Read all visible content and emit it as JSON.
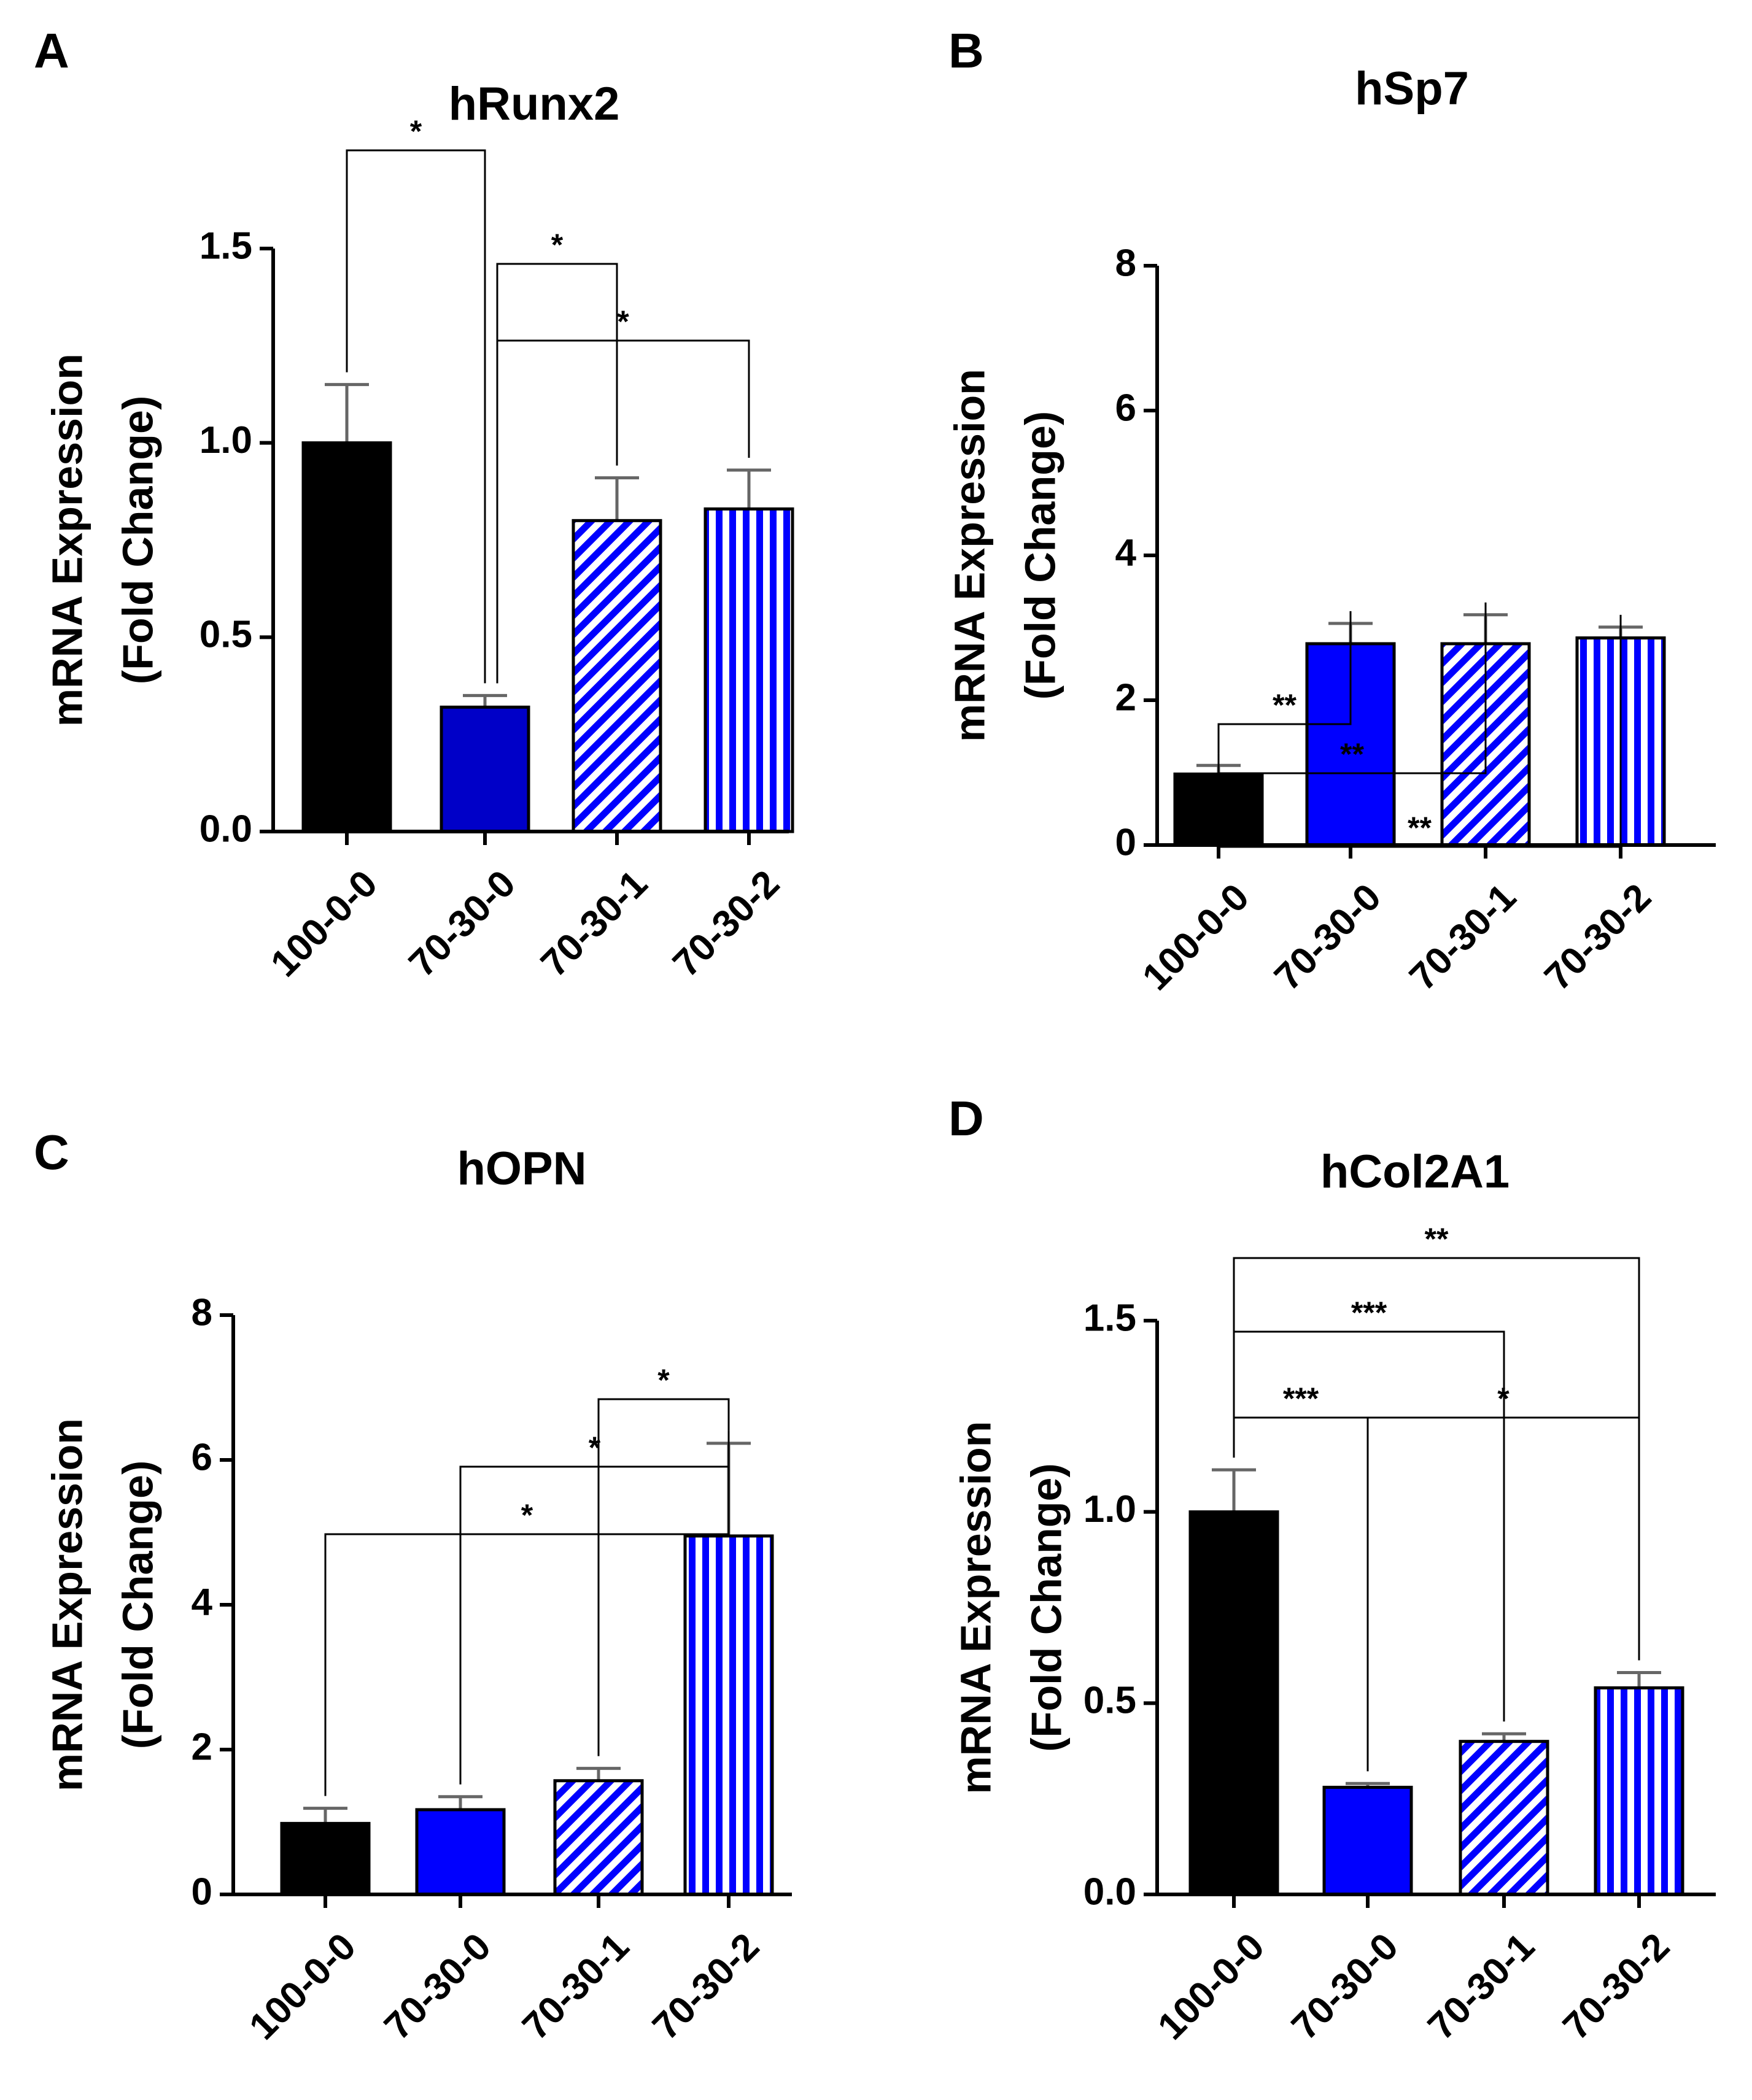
{
  "colors": {
    "black": "#000000",
    "blue": "#0000ff",
    "navy": "#0000c8",
    "errorbar": "#666666"
  },
  "chart_data": [
    {
      "panel": "A",
      "type": "bar",
      "title": "hRunx2",
      "ylabel": [
        "mRNA Expression",
        "(Fold Change)"
      ],
      "xlabel": "",
      "categories": [
        "100-0-0",
        "70-30-0",
        "70-30-1",
        "70-30-2"
      ],
      "values": [
        1.0,
        0.32,
        0.8,
        0.83
      ],
      "errors": [
        0.15,
        0.03,
        0.11,
        0.1
      ],
      "ylim": [
        0,
        1.5
      ],
      "yticks": [
        0.0,
        0.5,
        1.0,
        1.5
      ],
      "ytick_labels": [
        "0.0",
        "0.5",
        "1.0",
        "1.5"
      ],
      "bar_fill": [
        "black",
        "navy",
        "hatch-diagonal",
        "hatch-vertical"
      ],
      "significance": [
        {
          "from": 0,
          "to": 1,
          "label": "*"
        },
        {
          "from": 1,
          "to": 2,
          "label": "*"
        },
        {
          "from": 1,
          "to": 3,
          "label": "*"
        }
      ]
    },
    {
      "panel": "B",
      "type": "bar",
      "title": "hSp7",
      "ylabel": [
        "mRNA Expression",
        "(Fold Change)"
      ],
      "xlabel": "",
      "categories": [
        "100-0-0",
        "70-30-0",
        "70-30-1",
        "70-30-2"
      ],
      "values": [
        0.98,
        2.78,
        2.78,
        2.86
      ],
      "errors": [
        0.12,
        0.28,
        0.4,
        0.15
      ],
      "ylim": [
        0,
        8
      ],
      "yticks": [
        0,
        2,
        4,
        6,
        8
      ],
      "ytick_labels": [
        "0",
        "2",
        "4",
        "6",
        "8"
      ],
      "bar_fill": [
        "black",
        "blue",
        "hatch-diagonal",
        "hatch-vertical"
      ],
      "significance": [
        {
          "from": 0,
          "to": 1,
          "label": "**"
        },
        {
          "from": 0,
          "to": 2,
          "label": "**"
        },
        {
          "from": 0,
          "to": 3,
          "label": "**"
        }
      ]
    },
    {
      "panel": "C",
      "type": "bar",
      "title": "hOPN",
      "ylabel": [
        "mRNA Expression",
        "(Fold Change)"
      ],
      "xlabel": "",
      "categories": [
        "100-0-0",
        "70-30-0",
        "70-30-1",
        "70-30-2"
      ],
      "values": [
        0.98,
        1.17,
        1.57,
        4.95
      ],
      "errors": [
        0.21,
        0.18,
        0.17,
        1.28
      ],
      "ylim": [
        0,
        8
      ],
      "yticks": [
        0,
        2,
        4,
        6,
        8
      ],
      "ytick_labels": [
        "0",
        "2",
        "4",
        "6",
        "8"
      ],
      "bar_fill": [
        "black",
        "blue",
        "hatch-diagonal",
        "hatch-vertical"
      ],
      "significance": [
        {
          "from": 2,
          "to": 3,
          "label": "*"
        },
        {
          "from": 1,
          "to": 3,
          "label": "*"
        },
        {
          "from": 0,
          "to": 3,
          "label": "*"
        }
      ]
    },
    {
      "panel": "D",
      "type": "bar",
      "title": "hCol2A1",
      "ylabel": [
        "mRNA Expression",
        "(Fold Change)"
      ],
      "xlabel": "",
      "categories": [
        "100-0-0",
        "70-30-0",
        "70-30-1",
        "70-30-2"
      ],
      "values": [
        1.0,
        0.28,
        0.4,
        0.54
      ],
      "errors": [
        0.11,
        0.01,
        0.02,
        0.04
      ],
      "ylim": [
        0,
        1.5
      ],
      "yticks": [
        0.0,
        0.5,
        1.0,
        1.5
      ],
      "ytick_labels": [
        "0.0",
        "0.5",
        "1.0",
        "1.5"
      ],
      "bar_fill": [
        "black",
        "blue",
        "hatch-diagonal",
        "hatch-vertical"
      ],
      "significance": [
        {
          "from": 0,
          "to": 1,
          "label": "***"
        },
        {
          "from": 1,
          "to": 3,
          "label": "*"
        },
        {
          "from": 0,
          "to": 2,
          "label": "***"
        },
        {
          "from": 0,
          "to": 3,
          "label": "**"
        }
      ]
    }
  ]
}
